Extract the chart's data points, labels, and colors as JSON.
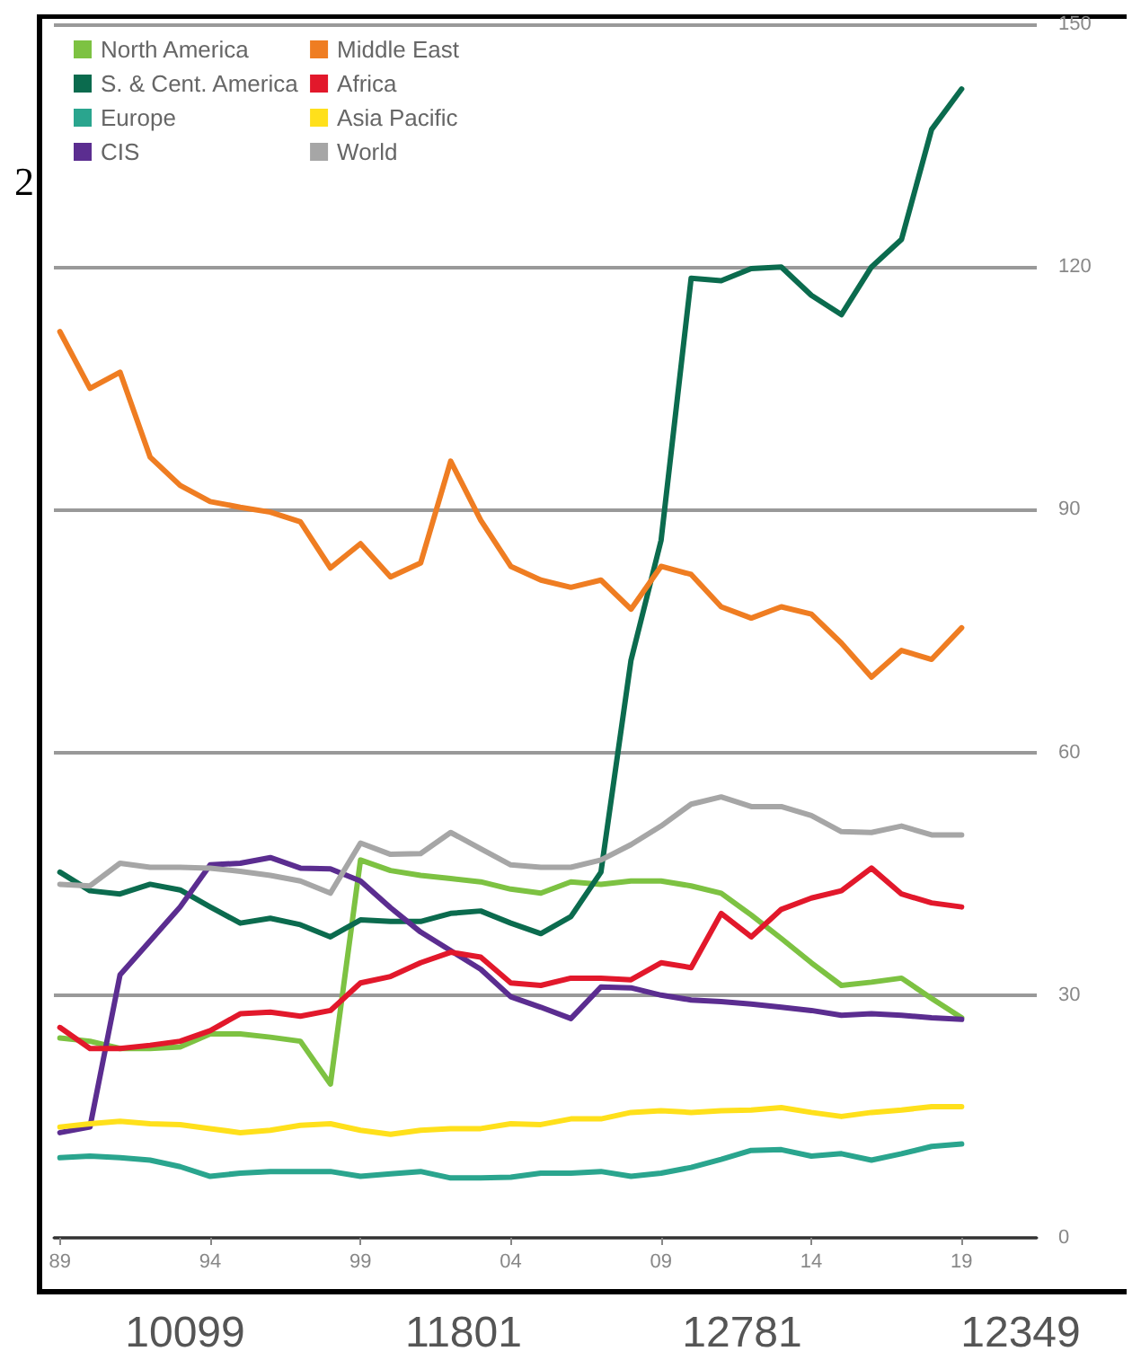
{
  "chart_data": {
    "type": "line",
    "x": [
      1989,
      1990,
      1991,
      1992,
      1993,
      1994,
      1995,
      1996,
      1997,
      1998,
      1999,
      2000,
      2001,
      2002,
      2003,
      2004,
      2005,
      2006,
      2007,
      2008,
      2009,
      2010,
      2011,
      2012,
      2013,
      2014,
      2015,
      2016,
      2017,
      2018,
      2019
    ],
    "series": [
      {
        "name": "North America",
        "color": "#7dc242",
        "values": [
          24.7,
          24.3,
          23.4,
          23.4,
          23.6,
          25.2,
          25.2,
          24.8,
          24.3,
          19,
          46.7,
          45.4,
          44.8,
          44.4,
          44,
          43.1,
          42.6,
          44,
          43.7,
          44.1,
          44.1,
          43.5,
          42.6,
          39.9,
          37,
          34,
          31.2,
          31.6,
          32.1,
          29.6,
          27.2
        ]
      },
      {
        "name": "S. & Cent. America",
        "color": "#0b6b4e",
        "values": [
          45.2,
          42.9,
          42.5,
          43.7,
          43,
          40.9,
          38.9,
          39.5,
          38.7,
          37.2,
          39.3,
          39.1,
          39.1,
          40.1,
          40.4,
          38.9,
          37.6,
          39.7,
          45.2,
          71.4,
          86.2,
          118.6,
          118.3,
          119.8,
          120,
          116.5,
          114.1,
          120,
          123.4,
          137,
          142
        ]
      },
      {
        "name": "Europe",
        "color": "#2aa58e",
        "values": [
          9.9,
          10.1,
          9.9,
          9.6,
          8.8,
          7.6,
          8,
          8.2,
          8.2,
          8.2,
          7.6,
          7.9,
          8.2,
          7.4,
          7.4,
          7.5,
          8,
          8,
          8.2,
          7.6,
          8,
          8.7,
          9.7,
          10.8,
          10.9,
          10.1,
          10.4,
          9.6,
          10.4,
          11.3,
          11.6
        ]
      },
      {
        "name": "CIS",
        "color": "#5b2d90",
        "values": [
          13,
          13.7,
          32.5,
          36.7,
          40.9,
          46.1,
          46.3,
          47,
          45.7,
          45.6,
          44.1,
          40.8,
          37.8,
          35.5,
          33.2,
          29.8,
          28.5,
          27.1,
          31,
          30.9,
          30,
          29.4,
          29.2,
          28.9,
          28.5,
          28.1,
          27.5,
          27.7,
          27.5,
          27.2,
          27
        ]
      },
      {
        "name": "Middle East",
        "color": "#ef7d22",
        "values": [
          112,
          105,
          107,
          96.5,
          93,
          91,
          90.3,
          89.7,
          88.5,
          82.8,
          85.8,
          81.7,
          83.4,
          96,
          88.7,
          83,
          81.3,
          80.4,
          81.3,
          77.7,
          83,
          82,
          78,
          76.6,
          78,
          77.1,
          73.5,
          69.3,
          72.6,
          71.5,
          75.4
        ]
      },
      {
        "name": "Africa",
        "color": "#e2182b",
        "values": [
          26,
          23.4,
          23.4,
          23.8,
          24.3,
          25.6,
          27.7,
          27.9,
          27.4,
          28.1,
          31.5,
          32.3,
          34,
          35.3,
          34.7,
          31.5,
          31.2,
          32.1,
          32.1,
          31.9,
          34,
          33.4,
          40.1,
          37.2,
          40.6,
          42,
          42.9,
          45.7,
          42.5,
          41.4,
          40.9
        ]
      },
      {
        "name": "Asia Pacific",
        "color": "#ffe01b",
        "values": [
          13.7,
          14.1,
          14.4,
          14.1,
          14,
          13.5,
          13,
          13.3,
          13.9,
          14.1,
          13.3,
          12.8,
          13.3,
          13.5,
          13.5,
          14.1,
          14,
          14.7,
          14.7,
          15.5,
          15.7,
          15.5,
          15.7,
          15.8,
          16.1,
          15.5,
          15,
          15.5,
          15.8,
          16.2,
          16.2
        ]
      },
      {
        "name": "World",
        "color": "#a6a6a6",
        "values": [
          43.7,
          43.5,
          46.3,
          45.8,
          45.8,
          45.7,
          45.3,
          44.8,
          44.1,
          42.6,
          48.8,
          47.4,
          47.5,
          50.1,
          48.1,
          46.1,
          45.8,
          45.8,
          46.7,
          48.6,
          50.9,
          53.6,
          54.5,
          53.3,
          53.3,
          52.2,
          50.2,
          50.1,
          50.9,
          49.8,
          49.8
        ]
      }
    ],
    "xlim": [
      1988.8,
      2021.5
    ],
    "xticks": [
      {
        "value": 1989,
        "label": "89"
      },
      {
        "value": 1994,
        "label": "94"
      },
      {
        "value": 1999,
        "label": "99"
      },
      {
        "value": 2004,
        "label": "04"
      },
      {
        "value": 2009,
        "label": "09"
      },
      {
        "value": 2014,
        "label": "14"
      },
      {
        "value": 2019,
        "label": "19"
      }
    ],
    "ylim": [
      0,
      150
    ],
    "yticks": [
      0,
      30,
      60,
      90,
      120,
      150
    ],
    "grid": "y",
    "legend": "top left",
    "marker": "none",
    "line_style": "solid",
    "annotations": [
      "2",
      "10099",
      "11801",
      "12781",
      "12349"
    ]
  }
}
